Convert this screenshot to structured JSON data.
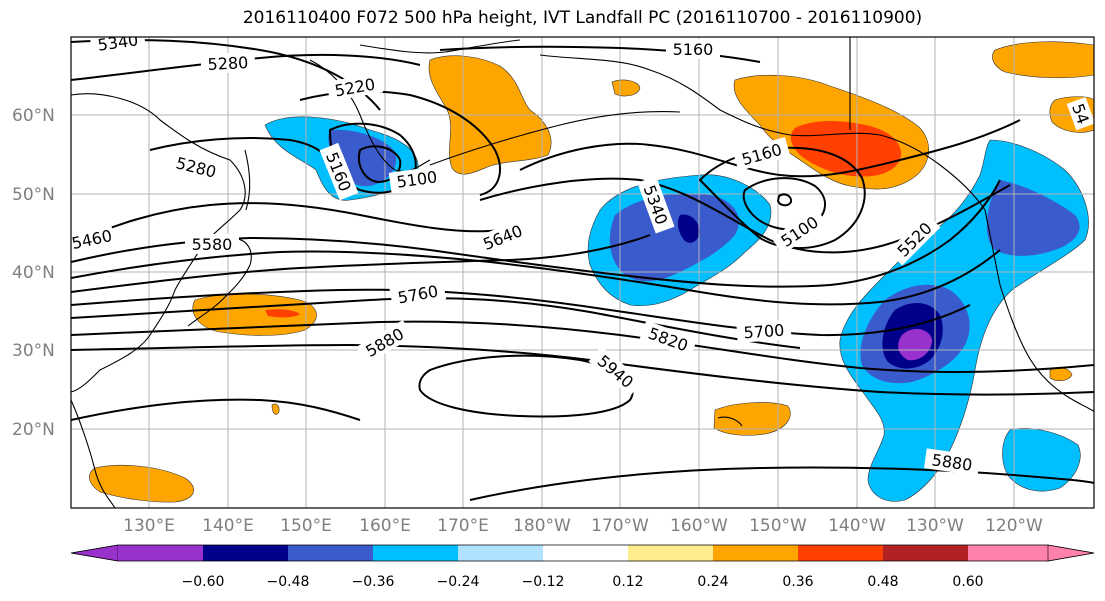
{
  "title": "2016110400 F072 500 hPa height, IVT Landfall PC (2016110700 - 2016110900)",
  "lat_labels": [
    "60°N",
    "50°N",
    "40°N",
    "30°N",
    "20°N"
  ],
  "lon_labels": [
    "130°E",
    "140°E",
    "150°E",
    "160°E",
    "170°E",
    "180°W",
    "170°W",
    "160°W",
    "150°W",
    "140°W",
    "130°W",
    "120°W"
  ],
  "contour_labels": [
    "5340",
    "5280",
    "5220",
    "5160",
    "5280",
    "5160",
    "5100",
    "5460",
    "5580",
    "5640",
    "5340",
    "5160",
    "5100",
    "5520",
    "5760",
    "5700",
    "5820",
    "5880",
    "5940",
    "5880",
    "54"
  ],
  "colorbar": {
    "colors": [
      "#9932cc",
      "#00008b",
      "#3a5bcb",
      "#00bfff",
      "#b0e2ff",
      "#ffffff",
      "#ffec8b",
      "#ffa500",
      "#ff4000",
      "#b22222",
      "#ff82ab"
    ],
    "ticks": [
      "−0.60",
      "−0.48",
      "−0.36",
      "−0.24",
      "−0.12",
      "0.12",
      "0.24",
      "0.36",
      "0.48",
      "0.60"
    ]
  },
  "colors": {
    "grid": "#b3b3b3",
    "contour": "#000000",
    "coast": "#000000"
  }
}
